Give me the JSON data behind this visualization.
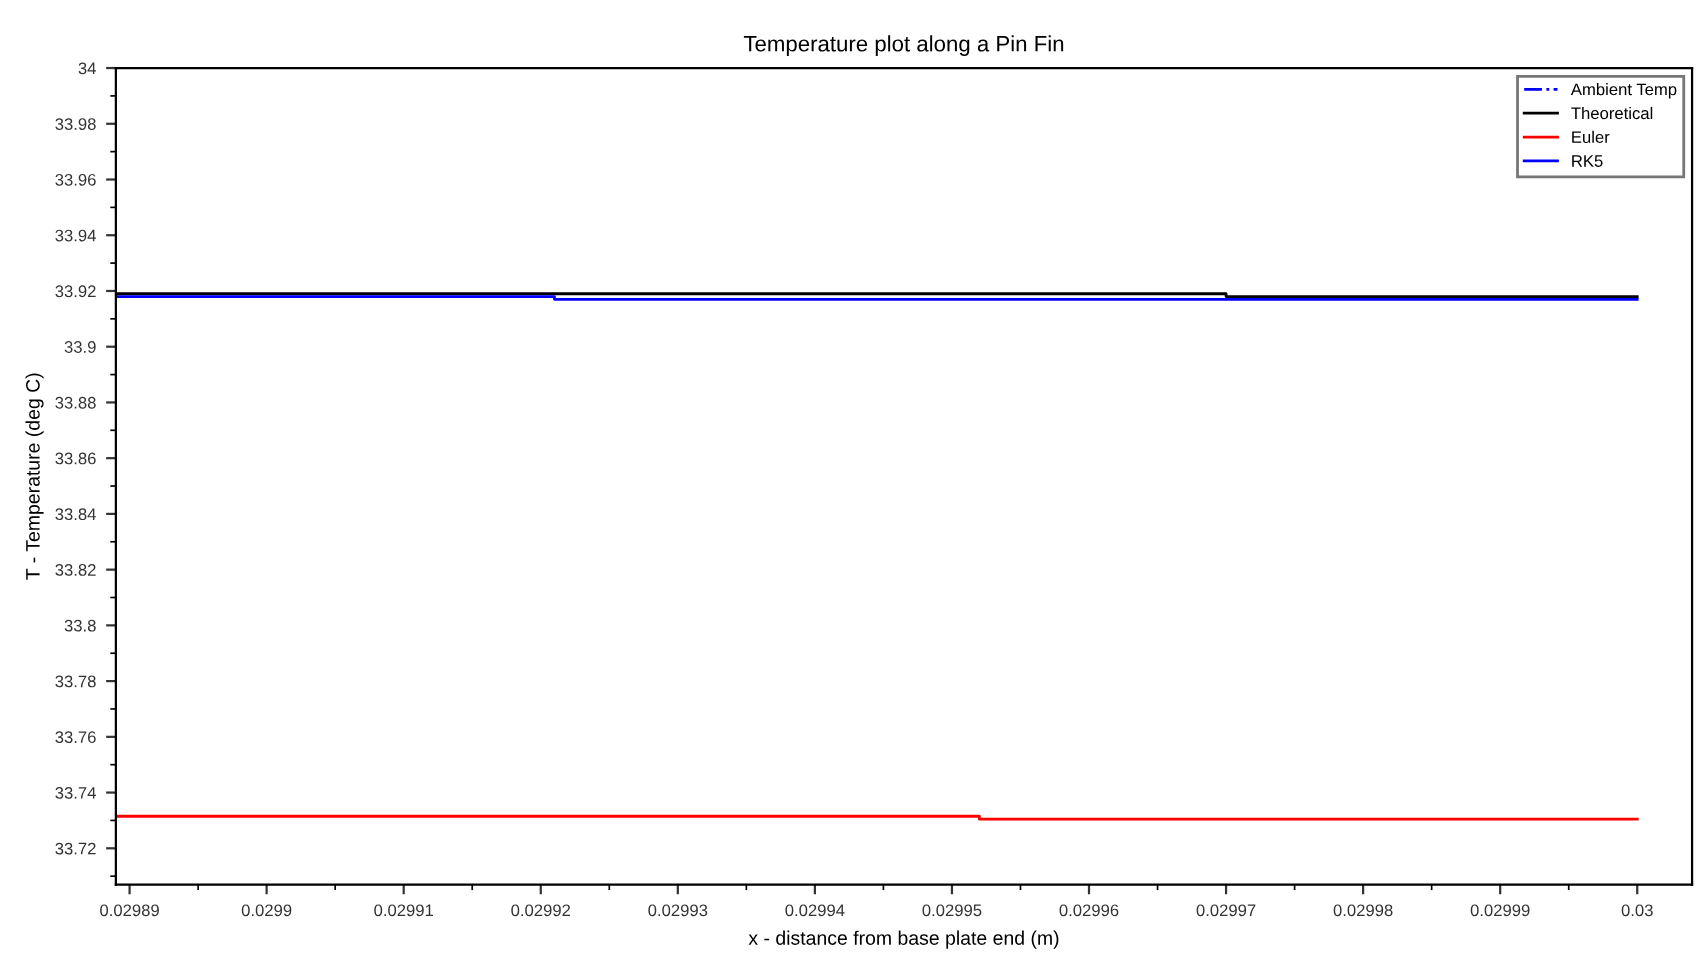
{
  "chart_data": {
    "type": "step",
    "title": "Temperature plot along a Pin Fin",
    "xlabel": "x - distance from base plate end (m)",
    "ylabel": "T - Temperature (deg C)",
    "xlim": [
      0.029889,
      0.030004
    ],
    "ylim": [
      33.707,
      34.0
    ],
    "xticks": [
      0.02989,
      0.0299,
      0.02991,
      0.02992,
      0.02993,
      0.02994,
      0.02995,
      0.02996,
      0.02997,
      0.02998,
      0.02999,
      0.03
    ],
    "yticks": [
      33.72,
      33.74,
      33.76,
      33.78,
      33.8,
      33.82,
      33.84,
      33.86,
      33.88,
      33.9,
      33.92,
      33.94,
      33.96,
      33.98,
      34
    ],
    "grid": false,
    "legend": "top right",
    "series": [
      {
        "name": "Ambient Temp",
        "color": "#0000ff",
        "line_style": "dashdot"
      },
      {
        "name": "Theoretical",
        "color": "#000000",
        "x": [
          0.029889,
          0.02997,
          0.03
        ],
        "values": [
          33.919,
          33.918,
          33.918
        ]
      },
      {
        "name": "Euler",
        "color": "#ff0000",
        "x": [
          0.029889,
          0.029952,
          0.03
        ],
        "values": [
          33.7315,
          33.7305,
          33.7305
        ]
      },
      {
        "name": "RK5",
        "color": "#0000ff",
        "x": [
          0.029889,
          0.029921,
          0.03
        ],
        "values": [
          33.918,
          33.917,
          33.917
        ]
      }
    ]
  }
}
